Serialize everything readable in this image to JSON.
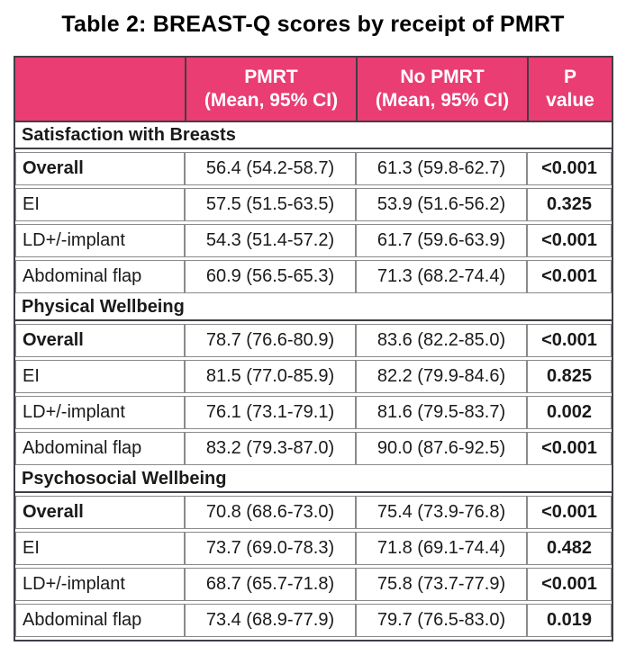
{
  "title": "Table 2: BREAST-Q scores by receipt of PMRT",
  "colors": {
    "header_bg": "#E93D74",
    "header_text": "#FFFFFF",
    "border_dark": "#3F3F46",
    "border_light": "#8A8A8A",
    "text": "#1A1A1A"
  },
  "table": {
    "columns": [
      {
        "label": "",
        "sublabel": ""
      },
      {
        "label": "PMRT",
        "sublabel": "(Mean, 95% CI)"
      },
      {
        "label": "No PMRT",
        "sublabel": "(Mean, 95% CI)"
      },
      {
        "label": "P",
        "sublabel": "value"
      }
    ],
    "sections": [
      {
        "heading": "Satisfaction with Breasts",
        "rows": [
          {
            "label": "Overall",
            "bold": true,
            "pmrt": "56.4 (54.2-58.7)",
            "no_pmrt": "61.3 (59.8-62.7)",
            "p": "<0.001"
          },
          {
            "label": "EI",
            "bold": false,
            "pmrt": "57.5 (51.5-63.5)",
            "no_pmrt": "53.9 (51.6-56.2)",
            "p": "0.325"
          },
          {
            "label": "LD+/-implant",
            "bold": false,
            "pmrt": "54.3 (51.4-57.2)",
            "no_pmrt": "61.7 (59.6-63.9)",
            "p": "<0.001"
          },
          {
            "label": "Abdominal flap",
            "bold": false,
            "pmrt": "60.9 (56.5-65.3)",
            "no_pmrt": "71.3 (68.2-74.4)",
            "p": "<0.001"
          }
        ]
      },
      {
        "heading": "Physical Wellbeing",
        "rows": [
          {
            "label": "Overall",
            "bold": true,
            "pmrt": "78.7 (76.6-80.9)",
            "no_pmrt": "83.6 (82.2-85.0)",
            "p": "<0.001"
          },
          {
            "label": "EI",
            "bold": false,
            "pmrt": "81.5 (77.0-85.9)",
            "no_pmrt": "82.2 (79.9-84.6)",
            "p": "0.825"
          },
          {
            "label": "LD+/-implant",
            "bold": false,
            "pmrt": "76.1 (73.1-79.1)",
            "no_pmrt": "81.6 (79.5-83.7)",
            "p": "0.002"
          },
          {
            "label": "Abdominal flap",
            "bold": false,
            "pmrt": "83.2 (79.3-87.0)",
            "no_pmrt": "90.0 (87.6-92.5)",
            "p": "<0.001"
          }
        ]
      },
      {
        "heading": "Psychosocial Wellbeing",
        "rows": [
          {
            "label": "Overall",
            "bold": true,
            "pmrt": "70.8 (68.6-73.0)",
            "no_pmrt": "75.4 (73.9-76.8)",
            "p": "<0.001"
          },
          {
            "label": "EI",
            "bold": false,
            "pmrt": "73.7 (69.0-78.3)",
            "no_pmrt": "71.8 (69.1-74.4)",
            "p": "0.482"
          },
          {
            "label": "LD+/-implant",
            "bold": false,
            "pmrt": "68.7 (65.7-71.8)",
            "no_pmrt": "75.8 (73.7-77.9)",
            "p": "<0.001"
          },
          {
            "label": "Abdominal flap",
            "bold": false,
            "pmrt": "73.4 (68.9-77.9)",
            "no_pmrt": "79.7 (76.5-83.0)",
            "p": "0.019"
          }
        ]
      }
    ]
  }
}
